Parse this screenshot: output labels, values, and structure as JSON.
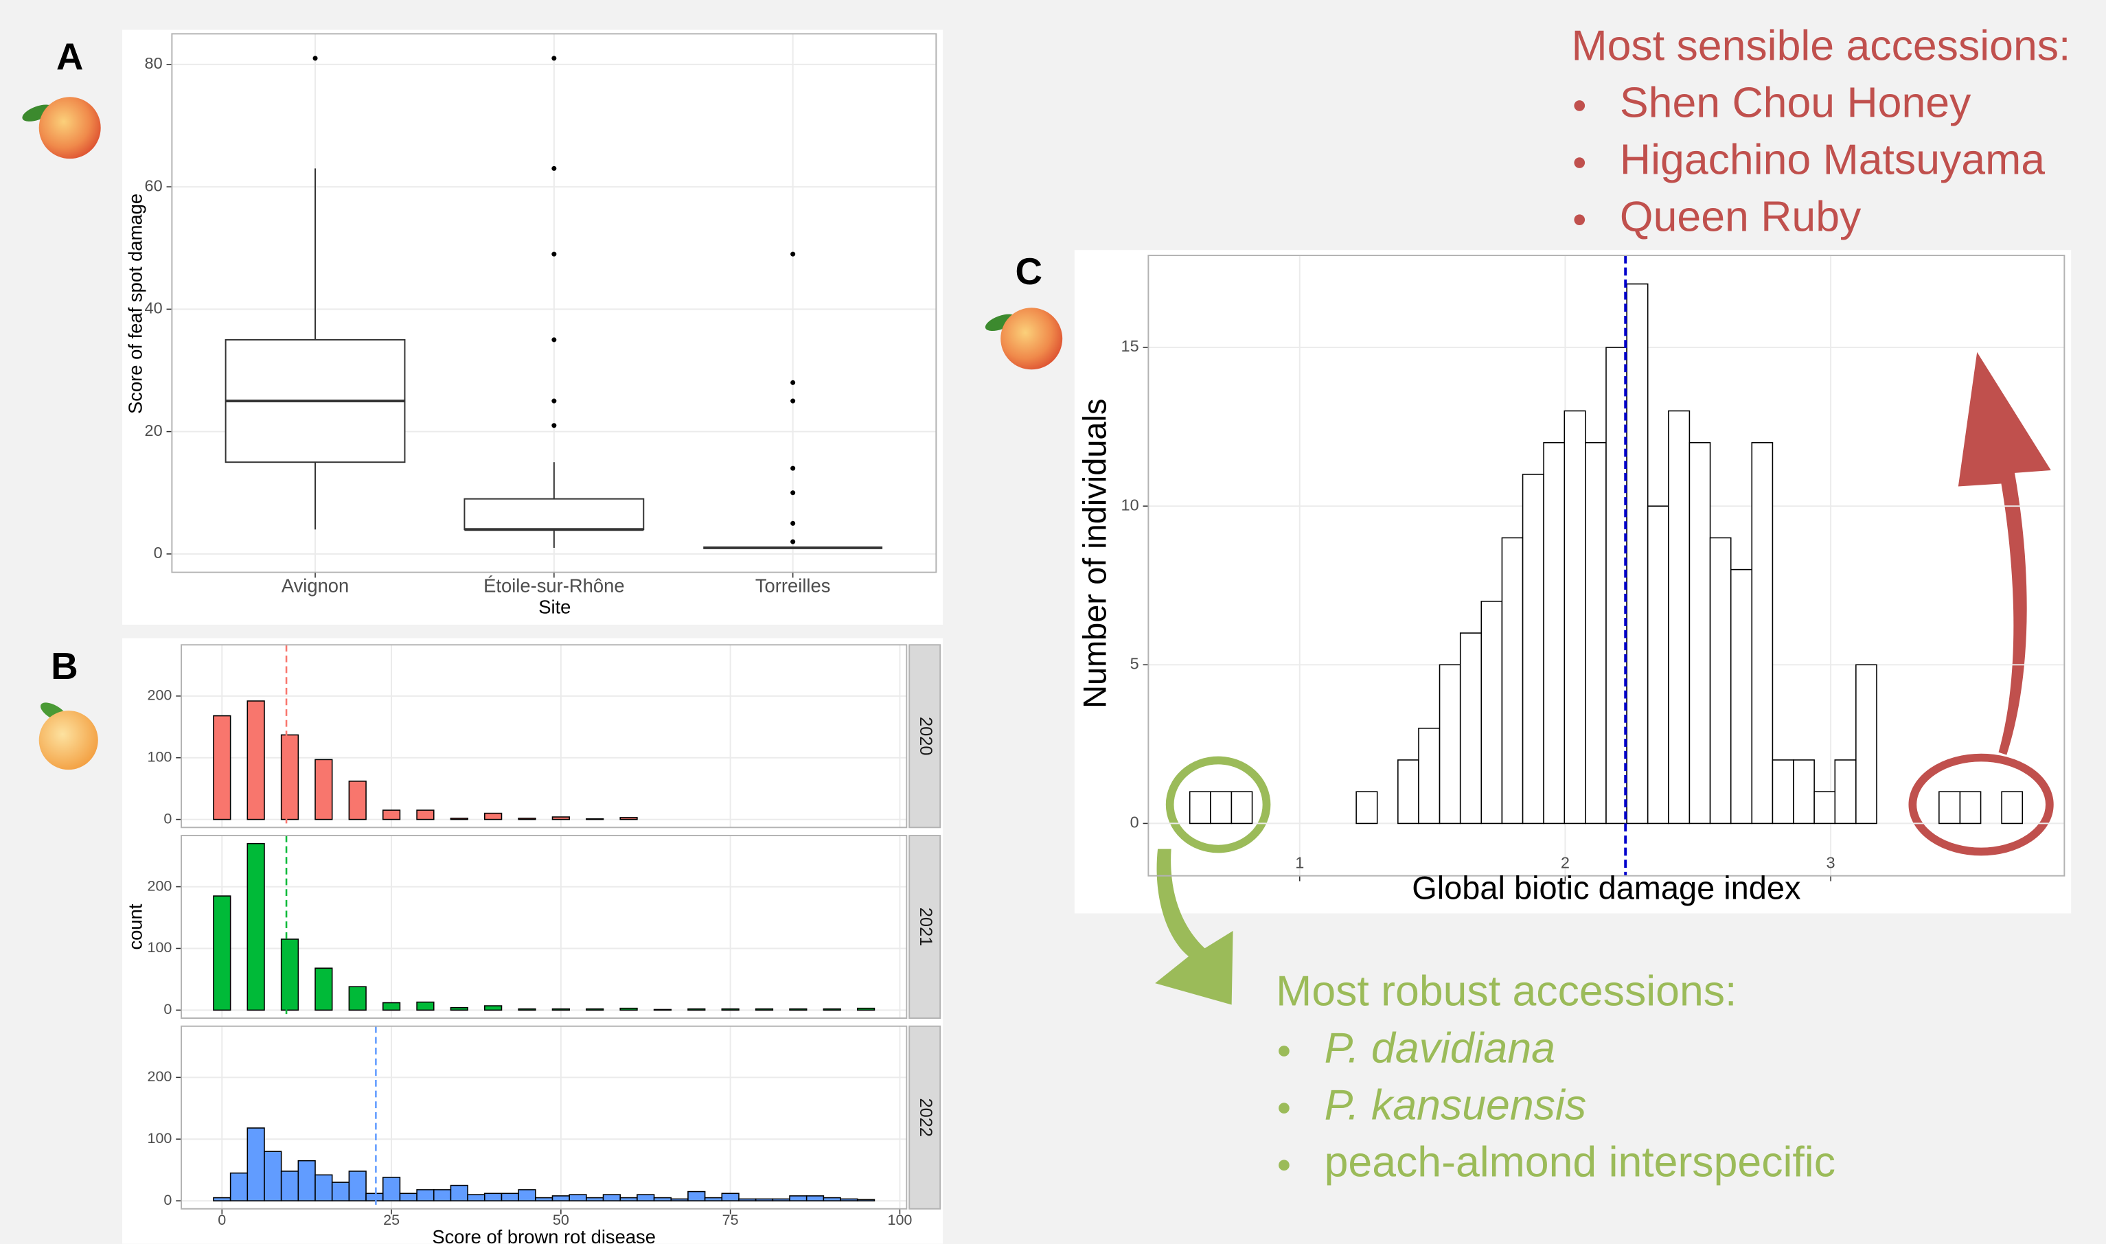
{
  "chart_data": [
    {
      "type": "box",
      "panel_label": "A",
      "categories": [
        "Avignon",
        "Étoile-sur-Rhône",
        "Torreilles"
      ],
      "xlabel": "Site",
      "ylabel": "Score of feaf spot damage",
      "ylim": [
        -3,
        85
      ],
      "yticks": [
        0,
        20,
        40,
        60,
        80
      ],
      "grid": true,
      "boxes": [
        {
          "low": 4,
          "q1": 15,
          "median": 25,
          "q3": 35,
          "high": 63,
          "outliers": [
            81
          ]
        },
        {
          "low": 1,
          "q1": 4,
          "median": 4,
          "q3": 9,
          "high": 15,
          "outliers": [
            21,
            25,
            35,
            49,
            63,
            81
          ]
        },
        {
          "low": 1,
          "q1": 1,
          "median": 1,
          "q3": 1,
          "high": 1,
          "outliers": [
            2,
            5,
            10,
            14,
            25,
            28,
            49
          ]
        }
      ]
    },
    {
      "type": "histogram",
      "panel_label": "B",
      "facets": true,
      "xlabel": "Score of brown rot disease",
      "ylabel": "count",
      "xlim": [
        -6,
        101
      ],
      "xticks": [
        0,
        25,
        50,
        75,
        100
      ],
      "ylim": [
        -13,
        283
      ],
      "yticks": [
        0,
        100,
        200
      ],
      "grid": true,
      "bins": [
        -1.25,
        1.25,
        3.75,
        6.25,
        8.75,
        11.25,
        13.75,
        16.25,
        18.75,
        21.25,
        23.75,
        26.25,
        28.75,
        31.25,
        33.75,
        36.25,
        38.75,
        41.25,
        43.75,
        46.25,
        48.75,
        51.25,
        53.75,
        56.25,
        58.75,
        61.25,
        63.75,
        66.25,
        68.75,
        71.25,
        73.75,
        76.25,
        78.75,
        81.25,
        83.75,
        86.25,
        88.75,
        91.25,
        93.75,
        96.25
      ],
      "series": [
        {
          "name": "2020",
          "color": "#f8766d",
          "mean": 9.5,
          "values": [
            168,
            0,
            192,
            0,
            137,
            0,
            97,
            0,
            62,
            0,
            15,
            0,
            15,
            0,
            2,
            0,
            10,
            0,
            2,
            0,
            4,
            0,
            1,
            0,
            3,
            0,
            0,
            0,
            0,
            0,
            0,
            0,
            0,
            0,
            0,
            0,
            0,
            0,
            0
          ]
        },
        {
          "name": "2021",
          "color": "#00ba38",
          "mean": 9.5,
          "values": [
            185,
            0,
            270,
            0,
            115,
            0,
            68,
            0,
            38,
            0,
            12,
            0,
            13,
            0,
            4,
            0,
            7,
            0,
            2,
            0,
            2,
            0,
            2,
            0,
            3,
            0,
            1,
            0,
            2,
            0,
            2,
            0,
            2,
            0,
            2,
            0,
            2,
            0,
            3
          ]
        },
        {
          "name": "2022",
          "color": "#619cff",
          "mean": 22.7,
          "values": [
            5,
            45,
            118,
            80,
            48,
            65,
            42,
            30,
            48,
            12,
            38,
            12,
            18,
            18,
            25,
            10,
            12,
            12,
            18,
            5,
            8,
            10,
            5,
            10,
            5,
            10,
            5,
            3,
            15,
            5,
            12,
            3,
            3,
            3,
            8,
            8,
            5,
            3,
            2
          ]
        }
      ]
    },
    {
      "type": "histogram",
      "panel_label": "C",
      "xlabel": "Global biotic damage index",
      "ylabel": "Number of individuals",
      "xlim": [
        0.43,
        3.88
      ],
      "xticks": [
        1,
        2,
        3
      ],
      "ylim": [
        -1.65,
        17.9
      ],
      "yticks": [
        0,
        5,
        10,
        15
      ],
      "grid": true,
      "color": "#ffffff",
      "mean": 2.227,
      "mean_color": "#0000cc",
      "bins": [
        0.586,
        0.664,
        0.743,
        0.821,
        0.9,
        0.978,
        1.056,
        1.135,
        1.213,
        1.292,
        1.37,
        1.448,
        1.527,
        1.605,
        1.684,
        1.762,
        1.84,
        1.919,
        1.997,
        2.076,
        2.154,
        2.232,
        2.311,
        2.389,
        2.468,
        2.546,
        2.624,
        2.703,
        2.781,
        2.86,
        2.938,
        3.016,
        3.095,
        3.173,
        3.252,
        3.33,
        3.408,
        3.487,
        3.565,
        3.644,
        3.722
      ],
      "values": [
        1,
        1,
        1,
        0,
        0,
        0,
        0,
        0,
        1,
        0,
        2,
        3,
        5,
        6,
        7,
        9,
        11,
        12,
        13,
        12,
        15,
        17,
        10,
        13,
        12,
        9,
        8,
        12,
        2,
        2,
        1,
        2,
        5,
        0,
        0,
        0,
        1,
        1,
        0,
        1
      ]
    }
  ],
  "callouts": [
    {
      "title": "Most sensible accessions:",
      "color": "#c0504d",
      "items": [
        {
          "text": "Shen Chou Honey",
          "italic": false
        },
        {
          "text": "Higachino Matsuyama",
          "italic": false
        },
        {
          "text": "Queen Ruby",
          "italic": false
        }
      ]
    },
    {
      "title": "Most robust accessions:",
      "color": "#9bbb59",
      "items": [
        {
          "text": "P. davidiana",
          "italic": true
        },
        {
          "text": "P. kansuensis",
          "italic": true
        },
        {
          "text": "peach-almond interspecific",
          "italic": false
        }
      ]
    }
  ]
}
